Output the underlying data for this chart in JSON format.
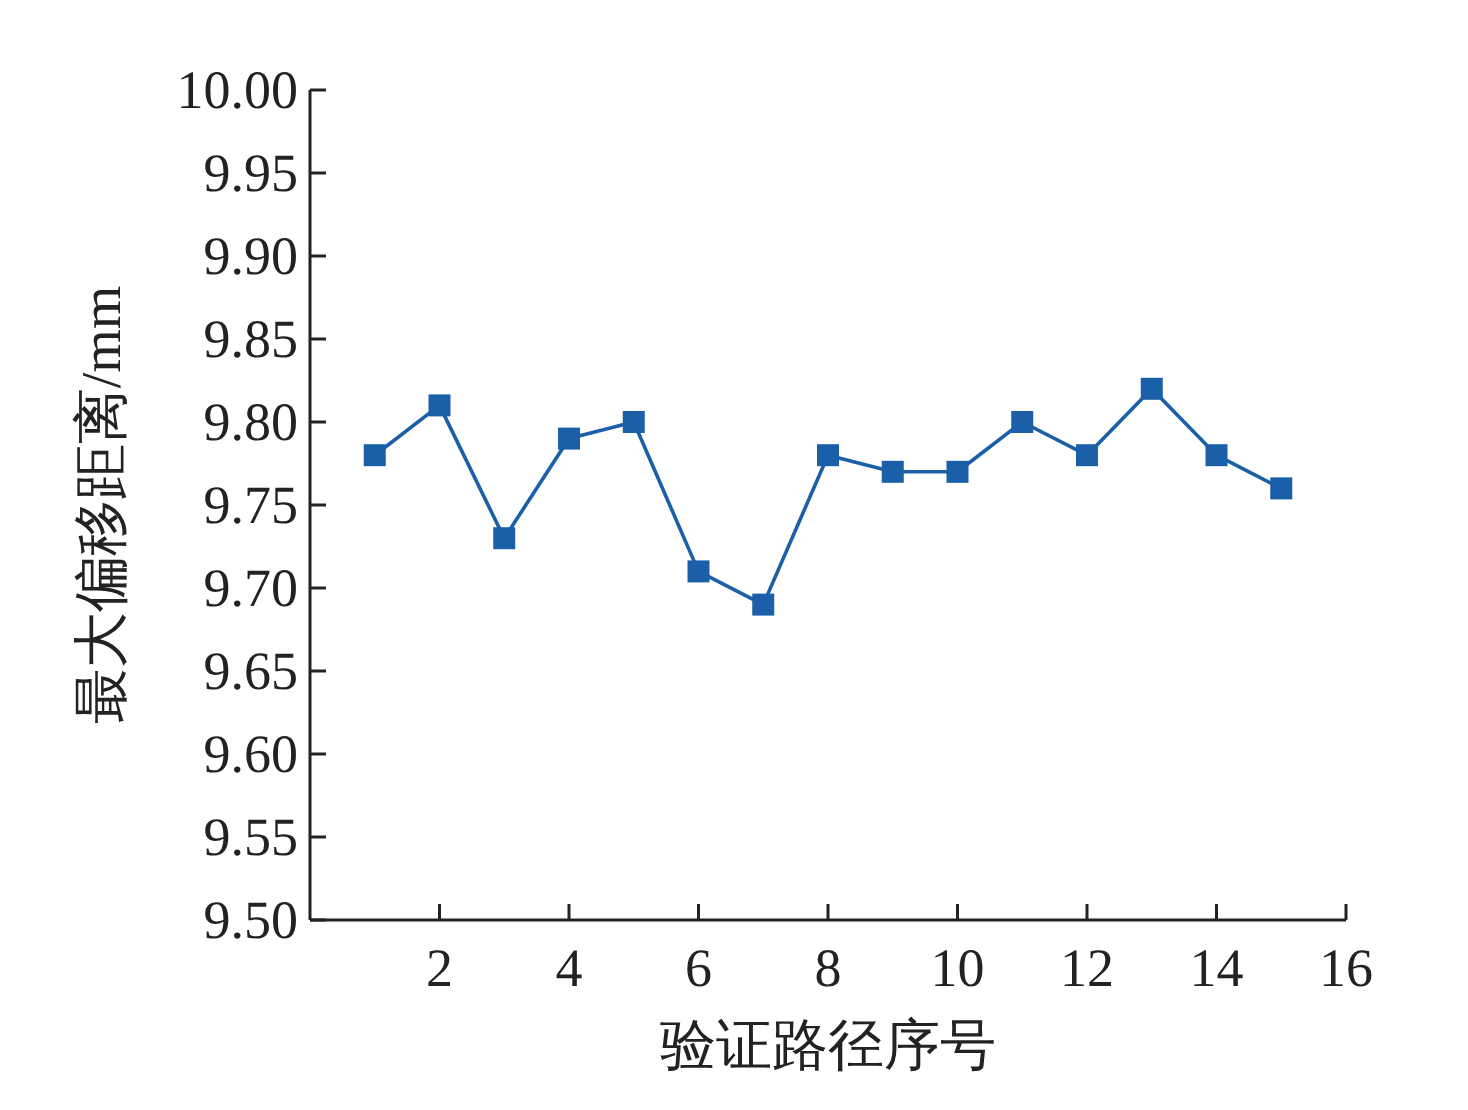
{
  "chart_data": {
    "type": "line",
    "xlabel": "验证路径序号",
    "ylabel": "最大偏移距离/mm",
    "x": [
      1,
      2,
      3,
      4,
      5,
      6,
      7,
      8,
      9,
      10,
      11,
      12,
      13,
      14,
      15
    ],
    "series": [
      {
        "color": "#1a5fa8",
        "values": [
          9.78,
          9.81,
          9.73,
          9.79,
          9.8,
          9.71,
          9.69,
          9.78,
          9.77,
          9.77,
          9.8,
          9.78,
          9.82,
          9.78,
          9.76
        ]
      }
    ],
    "marker": "square",
    "line_style": "solid",
    "xlim": [
      0,
      16
    ],
    "xticks": [
      2,
      4,
      6,
      8,
      10,
      12,
      14,
      16
    ],
    "ylim": [
      9.5,
      10.0
    ],
    "yticks": [
      {
        "value": 9.5,
        "label": "9.50"
      },
      {
        "value": 9.55,
        "label": "9.55"
      },
      {
        "value": 9.6,
        "label": "9.60"
      },
      {
        "value": 9.65,
        "label": "9.65"
      },
      {
        "value": 9.7,
        "label": "9.70"
      },
      {
        "value": 9.75,
        "label": "9.75"
      },
      {
        "value": 9.8,
        "label": "9.80"
      },
      {
        "value": 9.85,
        "label": "9.85"
      },
      {
        "value": 9.9,
        "label": "9.90"
      },
      {
        "value": 9.95,
        "label": "9.95"
      },
      {
        "value": 10.0,
        "label": "10.00"
      }
    ]
  }
}
